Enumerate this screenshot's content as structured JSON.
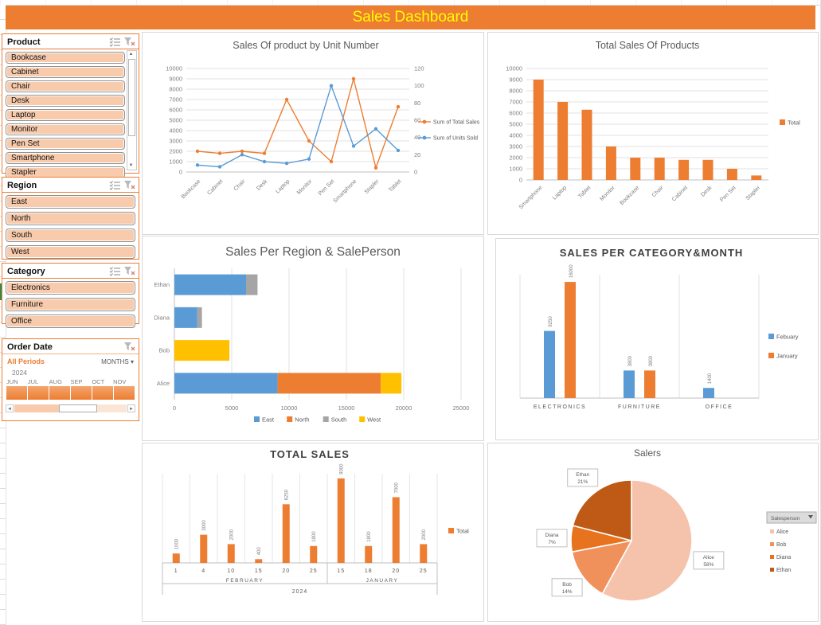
{
  "header": {
    "title": "Sales Dashboard"
  },
  "slicers": [
    {
      "name": "Product",
      "items": [
        "Bookcase",
        "Cabinet",
        "Chair",
        "Desk",
        "Laptop",
        "Monitor",
        "Pen Set",
        "Smartphone",
        "Stapler"
      ],
      "has_scrollbar": true
    },
    {
      "name": "Region",
      "items": [
        "East",
        "North",
        "South",
        "West"
      ],
      "has_scrollbar": false
    },
    {
      "name": "Category",
      "items": [
        "Electronics",
        "Furniture",
        "Office"
      ],
      "has_scrollbar": false
    }
  ],
  "timeline": {
    "title": "Order Date",
    "period_label": "All Periods",
    "level_label": "MONTHS",
    "year": "2024",
    "months": [
      "JUN",
      "JUL",
      "AUG",
      "SEP",
      "OCT",
      "NOV"
    ]
  },
  "colors": {
    "header_bg": "#ED7D31",
    "header_text": "#FFFF00",
    "accent_orange": "#ED7D31",
    "accent_blue": "#5B9BD5",
    "accent_gray": "#A5A5A5",
    "accent_yellow": "#FFC000",
    "slicer_item_fill": "#F8CBAD"
  },
  "chart_data": [
    {
      "id": "sales-by-unit",
      "type": "line",
      "title": "Sales Of product by Unit Number",
      "categories": [
        "Bookcase",
        "Cabinet",
        "Chair",
        "Desk",
        "Laptop",
        "Monitor",
        "Pen Set",
        "Smartphone",
        "Stapler",
        "Tablet"
      ],
      "series": [
        {
          "name": "Sum of Total Sales",
          "axis": "left",
          "color": "#ED7D31",
          "values": [
            2000,
            1800,
            2000,
            1800,
            7000,
            3000,
            1000,
            9000,
            400,
            6300
          ]
        },
        {
          "name": "Sum of Units Sold",
          "axis": "right",
          "color": "#5B9BD5",
          "values": [
            8,
            6,
            20,
            12,
            10,
            15,
            100,
            30,
            50,
            25
          ]
        }
      ],
      "axes": {
        "left": {
          "min": 0,
          "max": 10000,
          "step": 1000
        },
        "right": {
          "min": 0,
          "max": 120,
          "step": 20
        }
      },
      "grid": true,
      "legend_position": "right"
    },
    {
      "id": "total-by-product",
      "type": "bar",
      "title": "Total Sales Of Products",
      "categories": [
        "Smartphone",
        "Laptop",
        "Tablet",
        "Monitor",
        "Bookcase",
        "Chair",
        "Cabinet",
        "Desk",
        "Pen Set",
        "Stapler"
      ],
      "series": [
        {
          "name": "Total",
          "color": "#ED7D31",
          "values": [
            9000,
            7000,
            6300,
            3000,
            2000,
            2000,
            1800,
            1800,
            1000,
            400
          ]
        }
      ],
      "axes": {
        "left": {
          "min": 0,
          "max": 10000,
          "step": 1000
        }
      },
      "grid": true,
      "legend_position": "right"
    },
    {
      "id": "region-salesperson",
      "type": "stacked-bar-h",
      "title": "Sales Per Region & SalePerson",
      "categories_bottom_to_top": [
        "Alice",
        "Bob",
        "Diana",
        "Ethan"
      ],
      "series": [
        {
          "name": "East",
          "color": "#5B9BD5",
          "values": [
            9000,
            0,
            2000,
            6250
          ]
        },
        {
          "name": "North",
          "color": "#ED7D31",
          "values": [
            9000,
            0,
            0,
            0
          ]
        },
        {
          "name": "South",
          "color": "#A5A5A5",
          "values": [
            0,
            0,
            400,
            1000
          ]
        },
        {
          "name": "West",
          "color": "#FFC000",
          "values": [
            1800,
            4800,
            0,
            0
          ]
        }
      ],
      "axes": {
        "x": {
          "min": 0,
          "max": 25000,
          "step": 5000
        }
      },
      "grid": true,
      "legend_position": "bottom"
    },
    {
      "id": "category-month",
      "type": "grouped-bar",
      "title": "SALES PER CATEGORY&MONTH",
      "categories": [
        "ELECTRONICS",
        "FURNITURE",
        "OFFICE"
      ],
      "series": [
        {
          "name": "Febuary",
          "color": "#5B9BD5",
          "values": [
            9250,
            3800,
            1400
          ]
        },
        {
          "name": "January",
          "color": "#ED7D31",
          "values": [
            16000,
            3800,
            null
          ]
        }
      ],
      "y_max_implied": 17000,
      "data_labels": true,
      "legend_position": "right"
    },
    {
      "id": "total-sales-by-date",
      "type": "date-bar",
      "title": "TOTAL SALES",
      "x_groups": [
        {
          "month": "FEBRUARY",
          "days": [
            "1",
            "4",
            "10",
            "15",
            "20",
            "25"
          ],
          "values": [
            1000,
            3000,
            2000,
            400,
            6250,
            1800
          ]
        },
        {
          "month": "JANUARY",
          "days": [
            "15",
            "18",
            "20",
            "25"
          ],
          "values": [
            9000,
            1800,
            7000,
            2000
          ]
        }
      ],
      "year": "2024",
      "series": [
        {
          "name": "Total",
          "color": "#ED7D31"
        }
      ],
      "y_max_implied": 9500,
      "data_labels": true,
      "legend_position": "right"
    },
    {
      "id": "salers",
      "type": "pie",
      "title": "Salers",
      "field_button": "Salesperson",
      "slices": [
        {
          "name": "Alice",
          "pct": 58,
          "color": "#F5C3AC"
        },
        {
          "name": "Bob",
          "pct": 14,
          "color": "#F0915C"
        },
        {
          "name": "Diana",
          "pct": 7,
          "color": "#E8731E"
        },
        {
          "name": "Ethan",
          "pct": 21,
          "color": "#BE5A15"
        }
      ],
      "legend_position": "right"
    }
  ]
}
